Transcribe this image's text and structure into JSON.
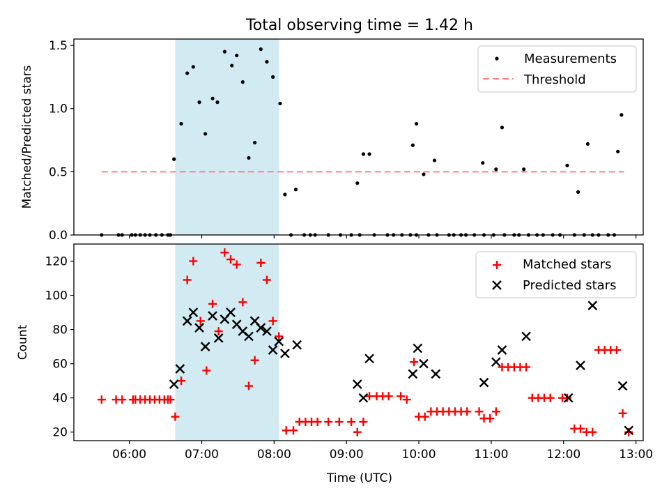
{
  "title": "Total observing time = 1.42 h",
  "xlabel": "Time (UTC)",
  "colors": {
    "band": "#add8e6",
    "threshold": "#ff7f7f",
    "matched": "#ff0000",
    "predicted": "#000000",
    "measurements": "#000000"
  },
  "chart_data": [
    {
      "type": "scatter",
      "ylabel": "Matched/Predicted stars",
      "ylim": [
        0,
        1.55
      ],
      "yticks": [
        0.0,
        0.5,
        1.0,
        1.5
      ],
      "ytick_labels": [
        "0.0",
        "0.5",
        "1.0",
        "1.5"
      ],
      "xlim": [
        "05:14",
        "13:06"
      ],
      "xticks": [
        "06:00",
        "07:00",
        "08:00",
        "09:00",
        "10:00",
        "11:00",
        "12:00",
        "13:00"
      ],
      "legend_position": "top-right",
      "shaded_interval": [
        "06:38",
        "08:04"
      ],
      "threshold": {
        "name": "Threshold",
        "value": 0.5,
        "x": [
          "05:37",
          "12:50"
        ]
      },
      "series": [
        {
          "name": "Measurements",
          "points": [
            [
              "05:37",
              0
            ],
            [
              "05:51",
              0
            ],
            [
              "05:54",
              0
            ],
            [
              "06:02",
              0
            ],
            [
              "06:05",
              0
            ],
            [
              "06:09",
              0
            ],
            [
              "06:13",
              0
            ],
            [
              "06:17",
              0
            ],
            [
              "06:22",
              0
            ],
            [
              "06:27",
              0
            ],
            [
              "06:32",
              0
            ],
            [
              "06:34",
              0
            ],
            [
              "06:37",
              0.6
            ],
            [
              "06:43",
              0.88
            ],
            [
              "06:48",
              1.28
            ],
            [
              "06:53",
              1.33
            ],
            [
              "06:58",
              1.05
            ],
            [
              "07:03",
              0.8
            ],
            [
              "07:09",
              1.08
            ],
            [
              "07:13",
              1.05
            ],
            [
              "07:19",
              1.45
            ],
            [
              "07:25",
              1.34
            ],
            [
              "07:29",
              1.42
            ],
            [
              "07:34",
              1.21
            ],
            [
              "07:39",
              0.61
            ],
            [
              "07:44",
              0.73
            ],
            [
              "07:49",
              1.47
            ],
            [
              "07:54",
              1.37
            ],
            [
              "07:59",
              1.25
            ],
            [
              "08:05",
              1.04
            ],
            [
              "08:09",
              0.32
            ],
            [
              "08:18",
              0.36
            ],
            [
              "08:14",
              0
            ],
            [
              "08:25",
              0
            ],
            [
              "08:30",
              0
            ],
            [
              "08:34",
              0
            ],
            [
              "08:45",
              0
            ],
            [
              "08:55",
              0
            ],
            [
              "09:04",
              0
            ],
            [
              "09:11",
              0
            ],
            [
              "09:23",
              0
            ],
            [
              "09:34",
              0
            ],
            [
              "09:39",
              0
            ],
            [
              "09:46",
              0
            ],
            [
              "09:09",
              0.41
            ],
            [
              "09:14",
              0.64
            ],
            [
              "09:19",
              0.64
            ],
            [
              "09:53",
              0
            ],
            [
              "09:58",
              0
            ],
            [
              "10:08",
              0
            ],
            [
              "10:15",
              0
            ],
            [
              "10:25",
              0
            ],
            [
              "10:29",
              0
            ],
            [
              "10:35",
              0
            ],
            [
              "10:39",
              0
            ],
            [
              "10:46",
              0
            ],
            [
              "10:54",
              0
            ],
            [
              "11:02",
              0
            ],
            [
              "11:11",
              0
            ],
            [
              "11:19",
              0
            ],
            [
              "11:23",
              0
            ],
            [
              "11:31",
              0
            ],
            [
              "11:38",
              0
            ],
            [
              "11:43",
              0
            ],
            [
              "11:51",
              0
            ],
            [
              "11:57",
              0
            ],
            [
              "12:09",
              0
            ],
            [
              "12:17",
              0
            ],
            [
              "12:24",
              0
            ],
            [
              "12:29",
              0
            ],
            [
              "12:37",
              0
            ],
            [
              "12:42",
              0
            ],
            [
              "09:55",
              0.71
            ],
            [
              "09:58",
              0.88
            ],
            [
              "10:04",
              0.48
            ],
            [
              "10:13",
              0.59
            ],
            [
              "10:53",
              0.57
            ],
            [
              "11:04",
              0.52
            ],
            [
              "11:09",
              0.85
            ],
            [
              "11:27",
              0.52
            ],
            [
              "12:03",
              0.55
            ],
            [
              "12:12",
              0.34
            ],
            [
              "12:20",
              0.72
            ],
            [
              "12:45",
              0.66
            ],
            [
              "12:48",
              0.95
            ]
          ]
        }
      ]
    },
    {
      "type": "scatter",
      "ylabel": "Count",
      "ylim": [
        15,
        130
      ],
      "yticks": [
        20,
        40,
        60,
        80,
        100,
        120
      ],
      "ytick_labels": [
        "20",
        "40",
        "60",
        "80",
        "100",
        "120"
      ],
      "xlim": [
        "05:14",
        "13:06"
      ],
      "xticks": [
        "06:00",
        "07:00",
        "08:00",
        "09:00",
        "10:00",
        "11:00",
        "12:00",
        "13:00"
      ],
      "xtick_labels": [
        "06:00",
        "07:00",
        "08:00",
        "09:00",
        "10:00",
        "11:00",
        "12:00",
        "13:00"
      ],
      "legend_position": "top-right",
      "shaded_interval": [
        "06:38",
        "08:04"
      ],
      "series": [
        {
          "name": "Matched stars",
          "marker": "plus",
          "points": [
            [
              "05:37",
              39
            ],
            [
              "05:49",
              39
            ],
            [
              "05:54",
              39
            ],
            [
              "06:03",
              39
            ],
            [
              "06:05",
              39
            ],
            [
              "06:09",
              39
            ],
            [
              "06:13",
              39
            ],
            [
              "06:17",
              39
            ],
            [
              "06:21",
              39
            ],
            [
              "06:25",
              39
            ],
            [
              "06:29",
              39
            ],
            [
              "06:32",
              39
            ],
            [
              "06:34",
              39
            ],
            [
              "06:38",
              29
            ],
            [
              "06:43",
              50
            ],
            [
              "06:48",
              109
            ],
            [
              "06:53",
              120
            ],
            [
              "06:59",
              85
            ],
            [
              "07:04",
              56
            ],
            [
              "07:09",
              95
            ],
            [
              "07:14",
              79
            ],
            [
              "07:19",
              125
            ],
            [
              "07:24",
              121
            ],
            [
              "07:29",
              118
            ],
            [
              "07:34",
              96
            ],
            [
              "07:39",
              47
            ],
            [
              "07:44",
              62
            ],
            [
              "07:49",
              119
            ],
            [
              "07:54",
              109
            ],
            [
              "07:59",
              85
            ],
            [
              "08:04",
              76
            ],
            [
              "08:10",
              21
            ],
            [
              "08:16",
              21
            ],
            [
              "08:21",
              26
            ],
            [
              "08:26",
              26
            ],
            [
              "08:31",
              26
            ],
            [
              "08:36",
              26
            ],
            [
              "08:45",
              26
            ],
            [
              "08:54",
              26
            ],
            [
              "09:04",
              26
            ],
            [
              "09:09",
              20
            ],
            [
              "09:14",
              26
            ],
            [
              "09:19",
              41
            ],
            [
              "09:25",
              41
            ],
            [
              "09:30",
              41
            ],
            [
              "09:35",
              41
            ],
            [
              "09:45",
              41
            ],
            [
              "09:50",
              39
            ],
            [
              "09:56",
              61
            ],
            [
              "10:00",
              29
            ],
            [
              "10:05",
              29
            ],
            [
              "10:10",
              32
            ],
            [
              "10:15",
              32
            ],
            [
              "10:20",
              32
            ],
            [
              "10:25",
              32
            ],
            [
              "10:30",
              32
            ],
            [
              "10:35",
              32
            ],
            [
              "10:40",
              32
            ],
            [
              "10:50",
              32
            ],
            [
              "10:54",
              28
            ],
            [
              "10:59",
              28
            ],
            [
              "11:04",
              32
            ],
            [
              "11:09",
              58
            ],
            [
              "11:14",
              58
            ],
            [
              "11:19",
              58
            ],
            [
              "11:24",
              58
            ],
            [
              "11:29",
              58
            ],
            [
              "11:34",
              40
            ],
            [
              "11:39",
              40
            ],
            [
              "11:44",
              40
            ],
            [
              "11:49",
              40
            ],
            [
              "11:59",
              40
            ],
            [
              "12:03",
              40
            ],
            [
              "12:09",
              22
            ],
            [
              "12:14",
              22
            ],
            [
              "12:19",
              20
            ],
            [
              "12:24",
              20
            ],
            [
              "12:29",
              68
            ],
            [
              "12:34",
              68
            ],
            [
              "12:39",
              68
            ],
            [
              "12:44",
              68
            ],
            [
              "12:49",
              31
            ],
            [
              "12:54",
              20
            ]
          ]
        },
        {
          "name": "Predicted stars",
          "marker": "x",
          "points": [
            [
              "06:37",
              48
            ],
            [
              "06:42",
              57
            ],
            [
              "06:48",
              85
            ],
            [
              "06:53",
              90
            ],
            [
              "06:58",
              81
            ],
            [
              "07:03",
              70
            ],
            [
              "07:09",
              88
            ],
            [
              "07:14",
              75
            ],
            [
              "07:19",
              86
            ],
            [
              "07:24",
              90
            ],
            [
              "07:29",
              83
            ],
            [
              "07:34",
              79
            ],
            [
              "07:39",
              76
            ],
            [
              "07:44",
              85
            ],
            [
              "07:49",
              81
            ],
            [
              "07:54",
              79
            ],
            [
              "07:59",
              68
            ],
            [
              "08:04",
              73
            ],
            [
              "08:09",
              66
            ],
            [
              "08:19",
              71
            ],
            [
              "09:09",
              48
            ],
            [
              "09:14",
              40
            ],
            [
              "09:19",
              63
            ],
            [
              "09:55",
              54
            ],
            [
              "09:59",
              69
            ],
            [
              "10:04",
              60
            ],
            [
              "10:14",
              54
            ],
            [
              "10:54",
              49
            ],
            [
              "11:04",
              61
            ],
            [
              "11:09",
              68
            ],
            [
              "11:29",
              76
            ],
            [
              "12:04",
              40
            ],
            [
              "12:14",
              59
            ],
            [
              "12:24",
              94
            ],
            [
              "12:49",
              47
            ],
            [
              "12:54",
              21
            ]
          ]
        }
      ]
    }
  ]
}
